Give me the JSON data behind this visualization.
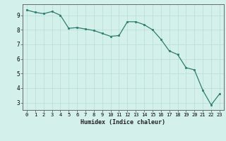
{
  "xlabel": "Humidex (Indice chaleur)",
  "x": [
    0,
    1,
    2,
    3,
    4,
    5,
    6,
    7,
    8,
    9,
    10,
    11,
    12,
    13,
    14,
    15,
    16,
    17,
    18,
    19,
    20,
    21,
    22,
    23
  ],
  "y": [
    9.35,
    9.2,
    9.1,
    9.25,
    9.0,
    8.1,
    8.15,
    8.05,
    7.95,
    7.75,
    7.55,
    7.6,
    8.55,
    8.55,
    8.35,
    8.0,
    7.35,
    6.55,
    6.3,
    5.4,
    5.25,
    3.85,
    2.85,
    3.6
  ],
  "line_color": "#2d7d6e",
  "marker": "s",
  "marker_size": 2.0,
  "bg_color": "#d4f0eb",
  "grid_color": "#b8ddd7",
  "axis_color": "#555555",
  "xlim": [
    -0.5,
    23.5
  ],
  "ylim": [
    2.5,
    9.75
  ],
  "yticks": [
    3,
    4,
    5,
    6,
    7,
    8,
    9
  ],
  "xticks": [
    0,
    1,
    2,
    3,
    4,
    5,
    6,
    7,
    8,
    9,
    10,
    11,
    12,
    13,
    14,
    15,
    16,
    17,
    18,
    19,
    20,
    21,
    22,
    23
  ]
}
